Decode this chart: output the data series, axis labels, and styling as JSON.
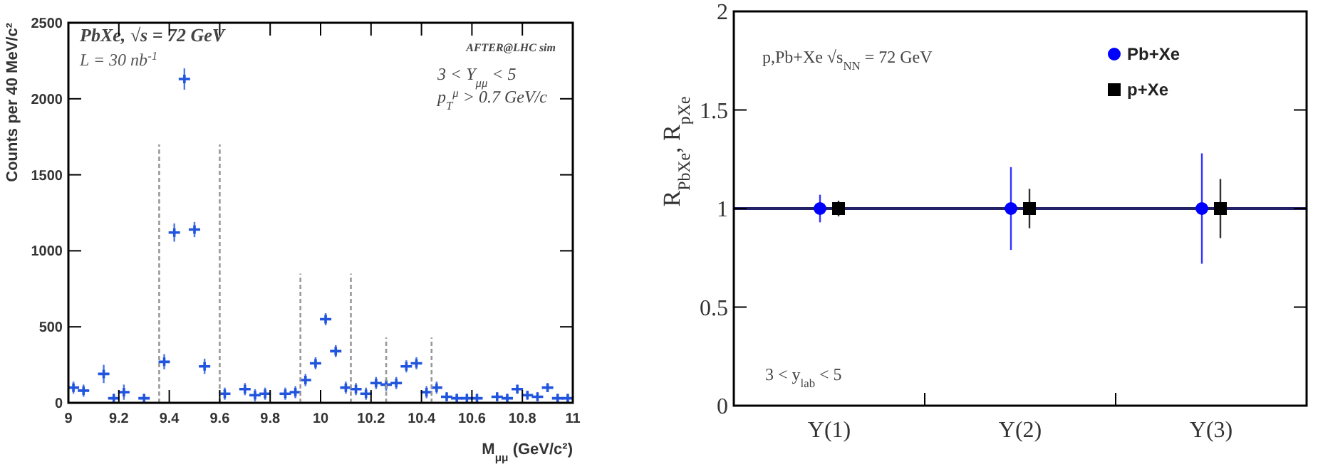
{
  "chart_data": [
    {
      "type": "scatter",
      "title": "PbXe, √s = 72 GeV",
      "xlabel": "M$_{μμ}$ (GeV/c²)",
      "ylabel": "Counts per 40 MeV/c²",
      "annotations": [
        "L = 30 nb$^{-1}$",
        "AFTER@LHC sim",
        "3 < Y$_{μμ}$ < 5",
        "p$_{T}$$^{μ}$ > 0.7 GeV/c"
      ],
      "x": [
        9.02,
        9.06,
        9.14,
        9.18,
        9.22,
        9.3,
        9.38,
        9.42,
        9.46,
        9.5,
        9.54,
        9.62,
        9.7,
        9.74,
        9.78,
        9.86,
        9.9,
        9.94,
        9.98,
        10.02,
        10.06,
        10.1,
        10.14,
        10.18,
        10.22,
        10.26,
        10.3,
        10.34,
        10.38,
        10.42,
        10.46,
        10.5,
        10.54,
        10.58,
        10.62,
        10.7,
        10.74,
        10.78,
        10.82,
        10.86,
        10.9,
        10.94,
        10.98
      ],
      "xlim": [
        9,
        11
      ],
      "xticks": [
        9,
        9.2,
        9.4,
        9.6,
        9.8,
        10,
        10.2,
        10.4,
        10.6,
        10.8,
        11
      ],
      "ylim": [
        0,
        2500
      ],
      "yticks": [
        0,
        500,
        1000,
        1500,
        2000,
        2500
      ],
      "series": [
        {
          "type": "scatter",
          "color": "#2255dd",
          "marker": "cross",
          "values": [
            100,
            80,
            190,
            30,
            70,
            30,
            270,
            1120,
            2130,
            1140,
            240,
            60,
            90,
            50,
            60,
            60,
            70,
            150,
            260,
            550,
            340,
            100,
            90,
            60,
            130,
            120,
            130,
            240,
            260,
            70,
            100,
            40,
            30,
            30,
            30,
            40,
            30,
            90,
            50,
            40,
            100,
            30,
            30
          ],
          "errors": [
            40,
            40,
            60,
            30,
            50,
            30,
            50,
            60,
            70,
            50,
            50,
            40,
            40,
            40,
            40,
            40,
            40,
            40,
            40,
            40,
            40,
            40,
            40,
            40,
            40,
            40,
            40,
            40,
            40,
            40,
            40,
            30,
            30,
            30,
            30,
            30,
            30,
            30,
            30,
            30,
            30,
            30,
            30
          ]
        },
        {
          "type": "line",
          "color": "#999999",
          "line_style": "dashed",
          "x": [
            9.36,
            9.36
          ],
          "values": [
            0,
            1700
          ]
        },
        {
          "type": "line",
          "color": "#999999",
          "line_style": "dashed",
          "x": [
            9.6,
            9.6
          ],
          "values": [
            0,
            1700
          ]
        },
        {
          "type": "line",
          "color": "#999999",
          "line_style": "dashed",
          "x": [
            9.92,
            9.92
          ],
          "values": [
            0,
            850
          ]
        },
        {
          "type": "line",
          "color": "#999999",
          "line_style": "dashed",
          "x": [
            10.12,
            10.12
          ],
          "values": [
            0,
            850
          ]
        },
        {
          "type": "line",
          "color": "#999999",
          "line_style": "dashed",
          "x": [
            10.26,
            10.26
          ],
          "values": [
            0,
            430
          ]
        },
        {
          "type": "line",
          "color": "#999999",
          "line_style": "dashed",
          "x": [
            10.44,
            10.44
          ],
          "values": [
            0,
            430
          ]
        }
      ]
    },
    {
      "type": "scatter",
      "ylabel": "R$_{PbXe}$, R$_{pXe}$",
      "categories": [
        "Υ(1)",
        "Υ(2)",
        "Υ(3)"
      ],
      "annotations": [
        "p,Pb+Xe √s$_{NN}$ = 72 GeV",
        "3 < y$_{lab}$ < 5"
      ],
      "ylim": [
        0,
        2
      ],
      "yticks": [
        0,
        0.5,
        1,
        1.5,
        2
      ],
      "legend": "top right",
      "ref_lines": [
        {
          "axis": "y",
          "value": 1,
          "color": "#222266"
        }
      ],
      "series": [
        {
          "name": "Pb+Xe",
          "color": "#0000ff",
          "marker": "circle",
          "values": [
            1,
            1,
            1
          ],
          "errors": [
            0.07,
            0.21,
            0.28
          ]
        },
        {
          "name": "p+Xe",
          "color": "#000000",
          "marker": "square",
          "values": [
            1,
            1,
            1
          ],
          "errors": [
            0.04,
            0.1,
            0.15
          ]
        }
      ]
    }
  ]
}
